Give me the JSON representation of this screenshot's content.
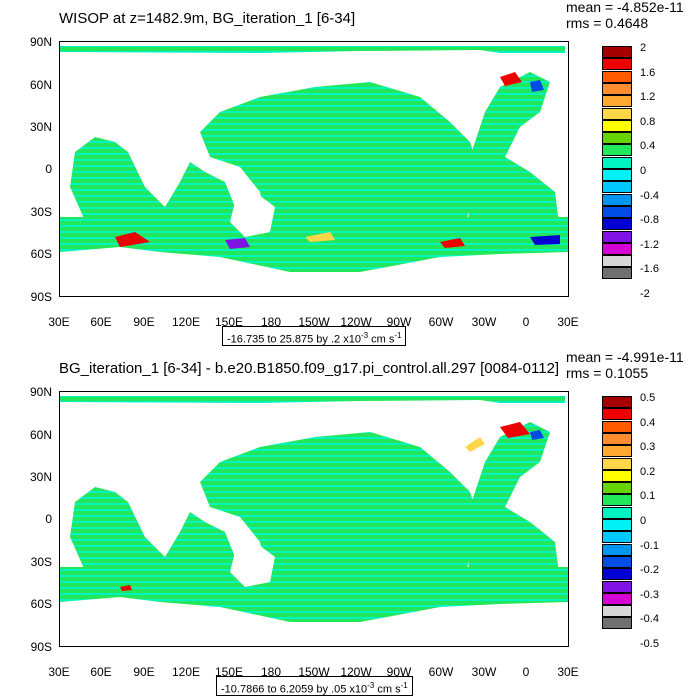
{
  "colors": [
    "#a50000",
    "#ef0000",
    "#ff5a00",
    "#ff8c2e",
    "#ffa832",
    "#ffd64a",
    "#ffff00",
    "#66d400",
    "#22e75a",
    "#00f3c0",
    "#00f0f7",
    "#00c8ff",
    "#0096f0",
    "#004de6",
    "#0000d2",
    "#7e13e2",
    "#d400d4",
    "#d7d7d7",
    "#707070"
  ],
  "lat_labels": [
    "90N",
    "60N",
    "30N",
    "0",
    "30S",
    "60S",
    "90S"
  ],
  "lon_labels": [
    "30E",
    "60E",
    "90E",
    "120E",
    "150E",
    "180",
    "150W",
    "120W",
    "90W",
    "60W",
    "30W",
    "0",
    "30E"
  ],
  "panels": [
    {
      "title": "WISOP at z=1482.9m, BG_iteration_1 [6-34]",
      "mean": "mean = -4.852e-11",
      "rms": "rms = 0.4648",
      "range_text": "-16.735 to 25.875 by .2 x10",
      "range_exp": "-3",
      "range_unit": " cm s",
      "range_unit_exp": "-1",
      "colorbar_labels": [
        "2",
        "1.6",
        "1.2",
        "0.8",
        "0.4",
        "0",
        "-0.4",
        "-0.8",
        "-1.2",
        "-1.6",
        "-2"
      ]
    },
    {
      "title": "BG_iteration_1 [6-34] - b.e20.B1850.f09_g17.pi_control.all.297 [0084-0112]",
      "mean": "mean = -4.991e-11",
      "rms": "rms = 0.1055",
      "range_text": "-10.7866 to 6.2059 by .05 x10",
      "range_exp": "-3",
      "range_unit": " cm s",
      "range_unit_exp": "-1",
      "colorbar_labels": [
        "0.5",
        "0.4",
        "0.3",
        "0.2",
        "0.1",
        "0",
        "-0.1",
        "-0.2",
        "-0.3",
        "-0.4",
        "-0.5"
      ]
    }
  ]
}
